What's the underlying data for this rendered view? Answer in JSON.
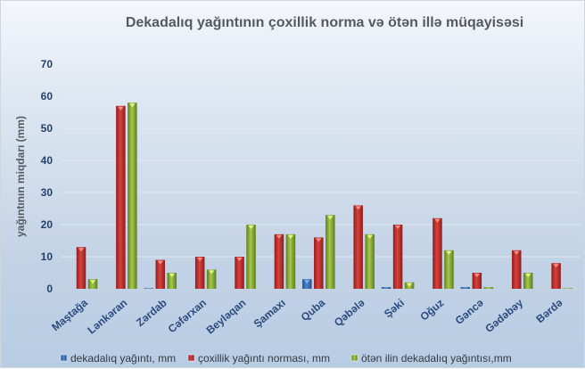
{
  "chart_data": {
    "type": "bar",
    "title": "Dekadalıq yağıntının çoxillik norma  və ötən illə müqayisəsi",
    "xlabel": "",
    "ylabel": "yağıntının miqdarı (mm)",
    "ylim": [
      0,
      70
    ],
    "yticks": [
      "0",
      "10",
      "20",
      "30",
      "40",
      "50",
      "60",
      "70"
    ],
    "grid": true,
    "legend_position": "bottom",
    "categories": [
      "Maştağa",
      "Lənkəran",
      "Zərdab",
      "Cəfərxan",
      "Beyləqan",
      "Şamaxı",
      "Quba",
      "Qəbələ",
      "Şəki",
      "Oğuz",
      "Gəncə",
      "Gədəbəy",
      "Bərdə"
    ],
    "series": [
      {
        "name": "dekadalıq yağıntı, mm",
        "color": "#3a6fb5",
        "values": [
          0,
          0,
          0.2,
          0,
          0,
          0,
          3,
          0,
          0.5,
          0,
          0.5,
          0,
          0
        ]
      },
      {
        "name": "çoxillik yağıntı norması, mm",
        "color": "#c0302e",
        "values": [
          13,
          57,
          9,
          10,
          10,
          17,
          16,
          26,
          20,
          22,
          5,
          12,
          8
        ]
      },
      {
        "name": "ötən ilin dekadalıq yağıntısı,mm",
        "color": "#8fb43a",
        "values": [
          3,
          58,
          5,
          6,
          20,
          17,
          23,
          17,
          2,
          12,
          0.5,
          5,
          0.2
        ]
      }
    ]
  }
}
